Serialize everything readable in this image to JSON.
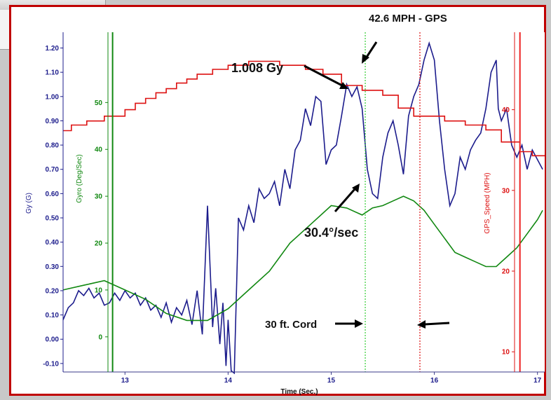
{
  "chart_data": {
    "type": "line",
    "xlabel": "Time (Sec.)",
    "xlim": [
      12.4,
      17.07
    ],
    "x_ticks": [
      13,
      14,
      15,
      16,
      17
    ],
    "axes": {
      "gy": {
        "label": "Gy (G)",
        "color": "#1c1c8c",
        "ylim": [
          -0.135,
          1.265
        ],
        "ticks": [
          -0.1,
          0.0,
          0.1,
          0.2,
          0.3,
          0.4,
          0.5,
          0.6,
          0.7,
          0.8,
          0.9,
          1.0,
          1.1,
          1.2
        ],
        "tick_labels": [
          "-0.10",
          "0.00",
          "0.10",
          "0.20",
          "0.30",
          "0.40",
          "0.50",
          "0.60",
          "0.70",
          "0.80",
          "0.90",
          "1.00",
          "1.10",
          "1.20"
        ]
      },
      "gyro": {
        "label": "Gyro (Deg/Sec)",
        "color": "#118811",
        "ylim": [
          -7.5,
          65
        ],
        "ticks": [
          0,
          10,
          20,
          30,
          40,
          50
        ],
        "tick_labels": [
          "0",
          "10",
          "20",
          "30",
          "40",
          "50"
        ]
      },
      "speed": {
        "label": "GPS_Speed (MPH)",
        "color": "#dd1111",
        "ylim": [
          7.5,
          49.6
        ],
        "ticks": [
          10,
          20,
          30,
          40
        ],
        "tick_labels": [
          "10",
          "20",
          "30",
          "40"
        ]
      }
    },
    "series": [
      {
        "axis": "gy",
        "color": "#1c1c8c",
        "x": [
          12.4,
          12.45,
          12.5,
          12.55,
          12.6,
          12.65,
          12.7,
          12.75,
          12.8,
          12.85,
          12.9,
          12.95,
          13.0,
          13.05,
          13.1,
          13.15,
          13.2,
          13.25,
          13.3,
          13.35,
          13.4,
          13.45,
          13.5,
          13.55,
          13.6,
          13.65,
          13.7,
          13.75,
          13.8,
          13.85,
          13.88,
          13.92,
          13.95,
          13.98,
          14.0,
          14.03,
          14.06,
          14.1,
          14.15,
          14.2,
          14.25,
          14.3,
          14.35,
          14.4,
          14.45,
          14.5,
          14.55,
          14.6,
          14.65,
          14.7,
          14.75,
          14.8,
          14.85,
          14.9,
          14.95,
          15.0,
          15.05,
          15.1,
          15.15,
          15.2,
          15.25,
          15.3,
          15.35,
          15.4,
          15.45,
          15.5,
          15.55,
          15.6,
          15.65,
          15.7,
          15.75,
          15.8,
          15.85,
          15.9,
          15.95,
          16.0,
          16.05,
          16.1,
          16.15,
          16.2,
          16.25,
          16.3,
          16.35,
          16.4,
          16.45,
          16.5,
          16.55,
          16.6,
          16.62,
          16.65,
          16.7,
          16.75,
          16.8,
          16.85,
          16.9,
          16.95,
          17.0,
          17.05
        ],
        "values": [
          0.08,
          0.13,
          0.15,
          0.2,
          0.18,
          0.21,
          0.17,
          0.19,
          0.14,
          0.15,
          0.19,
          0.16,
          0.2,
          0.17,
          0.19,
          0.14,
          0.17,
          0.12,
          0.14,
          0.09,
          0.15,
          0.07,
          0.13,
          0.1,
          0.16,
          0.06,
          0.2,
          0.02,
          0.55,
          0.05,
          0.21,
          -0.02,
          0.15,
          -0.11,
          0.08,
          -0.13,
          -0.14,
          0.5,
          0.45,
          0.55,
          0.48,
          0.62,
          0.58,
          0.6,
          0.65,
          0.55,
          0.7,
          0.62,
          0.78,
          0.82,
          0.95,
          0.88,
          1.0,
          0.98,
          0.72,
          0.78,
          0.8,
          0.92,
          1.05,
          1.0,
          1.04,
          0.95,
          0.7,
          0.6,
          0.58,
          0.75,
          0.85,
          0.9,
          0.8,
          0.68,
          0.92,
          1.0,
          1.05,
          1.15,
          1.22,
          1.15,
          0.9,
          0.7,
          0.55,
          0.6,
          0.75,
          0.7,
          0.78,
          0.82,
          0.85,
          0.95,
          1.1,
          1.15,
          0.95,
          0.9,
          0.95,
          0.8,
          0.75,
          0.8,
          0.7,
          0.78,
          0.74,
          0.7
        ]
      },
      {
        "axis": "gyro",
        "color": "#118811",
        "x": [
          12.4,
          12.6,
          12.8,
          13.0,
          13.2,
          13.4,
          13.6,
          13.8,
          14.0,
          14.2,
          14.4,
          14.6,
          14.8,
          15.0,
          15.15,
          15.3,
          15.4,
          15.5,
          15.6,
          15.7,
          15.8,
          15.9,
          16.0,
          16.1,
          16.2,
          16.3,
          16.4,
          16.5,
          16.6,
          16.7,
          16.8,
          16.9,
          17.0,
          17.05
        ],
        "values": [
          10,
          11,
          12,
          10,
          8,
          5,
          3.5,
          3.5,
          6,
          10,
          14,
          20,
          24,
          28,
          27.5,
          26,
          27.5,
          28,
          29,
          30,
          29,
          27,
          24,
          21,
          18,
          17,
          16,
          15,
          15,
          17,
          19,
          22,
          25,
          27
        ]
      },
      {
        "axis": "speed",
        "color": "#dd1111",
        "x": [
          12.4,
          12.48,
          12.48,
          12.63,
          12.63,
          12.8,
          12.8,
          13.0,
          13.0,
          13.1,
          13.1,
          13.2,
          13.2,
          13.3,
          13.3,
          13.4,
          13.4,
          13.5,
          13.5,
          13.6,
          13.6,
          13.7,
          13.7,
          13.85,
          13.85,
          14.0,
          14.0,
          14.2,
          14.2,
          14.5,
          14.5,
          14.75,
          14.75,
          14.92,
          14.92,
          15.1,
          15.1,
          15.3,
          15.3,
          15.5,
          15.5,
          15.65,
          15.65,
          15.8,
          15.8,
          16.1,
          16.1,
          16.3,
          16.3,
          16.5,
          16.5,
          16.65,
          16.65,
          16.83,
          16.83,
          16.95,
          16.95,
          17.07
        ],
        "values": [
          37.4,
          37.4,
          38.1,
          38.1,
          38.6,
          38.6,
          39.2,
          39.2,
          40.0,
          40.0,
          40.8,
          40.8,
          41.4,
          41.4,
          42.1,
          42.1,
          42.6,
          42.6,
          43.3,
          43.3,
          43.8,
          43.8,
          44.4,
          44.4,
          45.0,
          45.0,
          45.5,
          45.5,
          46.0,
          46.0,
          45.5,
          45.5,
          45.0,
          45.0,
          44.4,
          44.4,
          43.0,
          43.0,
          42.4,
          42.4,
          41.8,
          41.8,
          40.2,
          40.2,
          39.2,
          39.2,
          38.6,
          38.6,
          38.1,
          38.1,
          37.5,
          37.5,
          36.0,
          36.0,
          34.8,
          34.8,
          34.3,
          34.3
        ]
      }
    ],
    "vertical_lines": [
      {
        "x": 12.88,
        "color": "#118811",
        "style": "solid"
      },
      {
        "x": 15.33,
        "color": "#33cc33",
        "style": "dotted"
      },
      {
        "x": 15.86,
        "color": "#dd1111",
        "style": "dotted"
      },
      {
        "x": 16.83,
        "color": "#ee2222",
        "style": "solid"
      }
    ],
    "annotations": {
      "gps": "42.6 MPH - GPS",
      "gy": "1.008 Gy",
      "gyro": "30.4°/sec",
      "cord": "30 ft. Cord"
    }
  }
}
